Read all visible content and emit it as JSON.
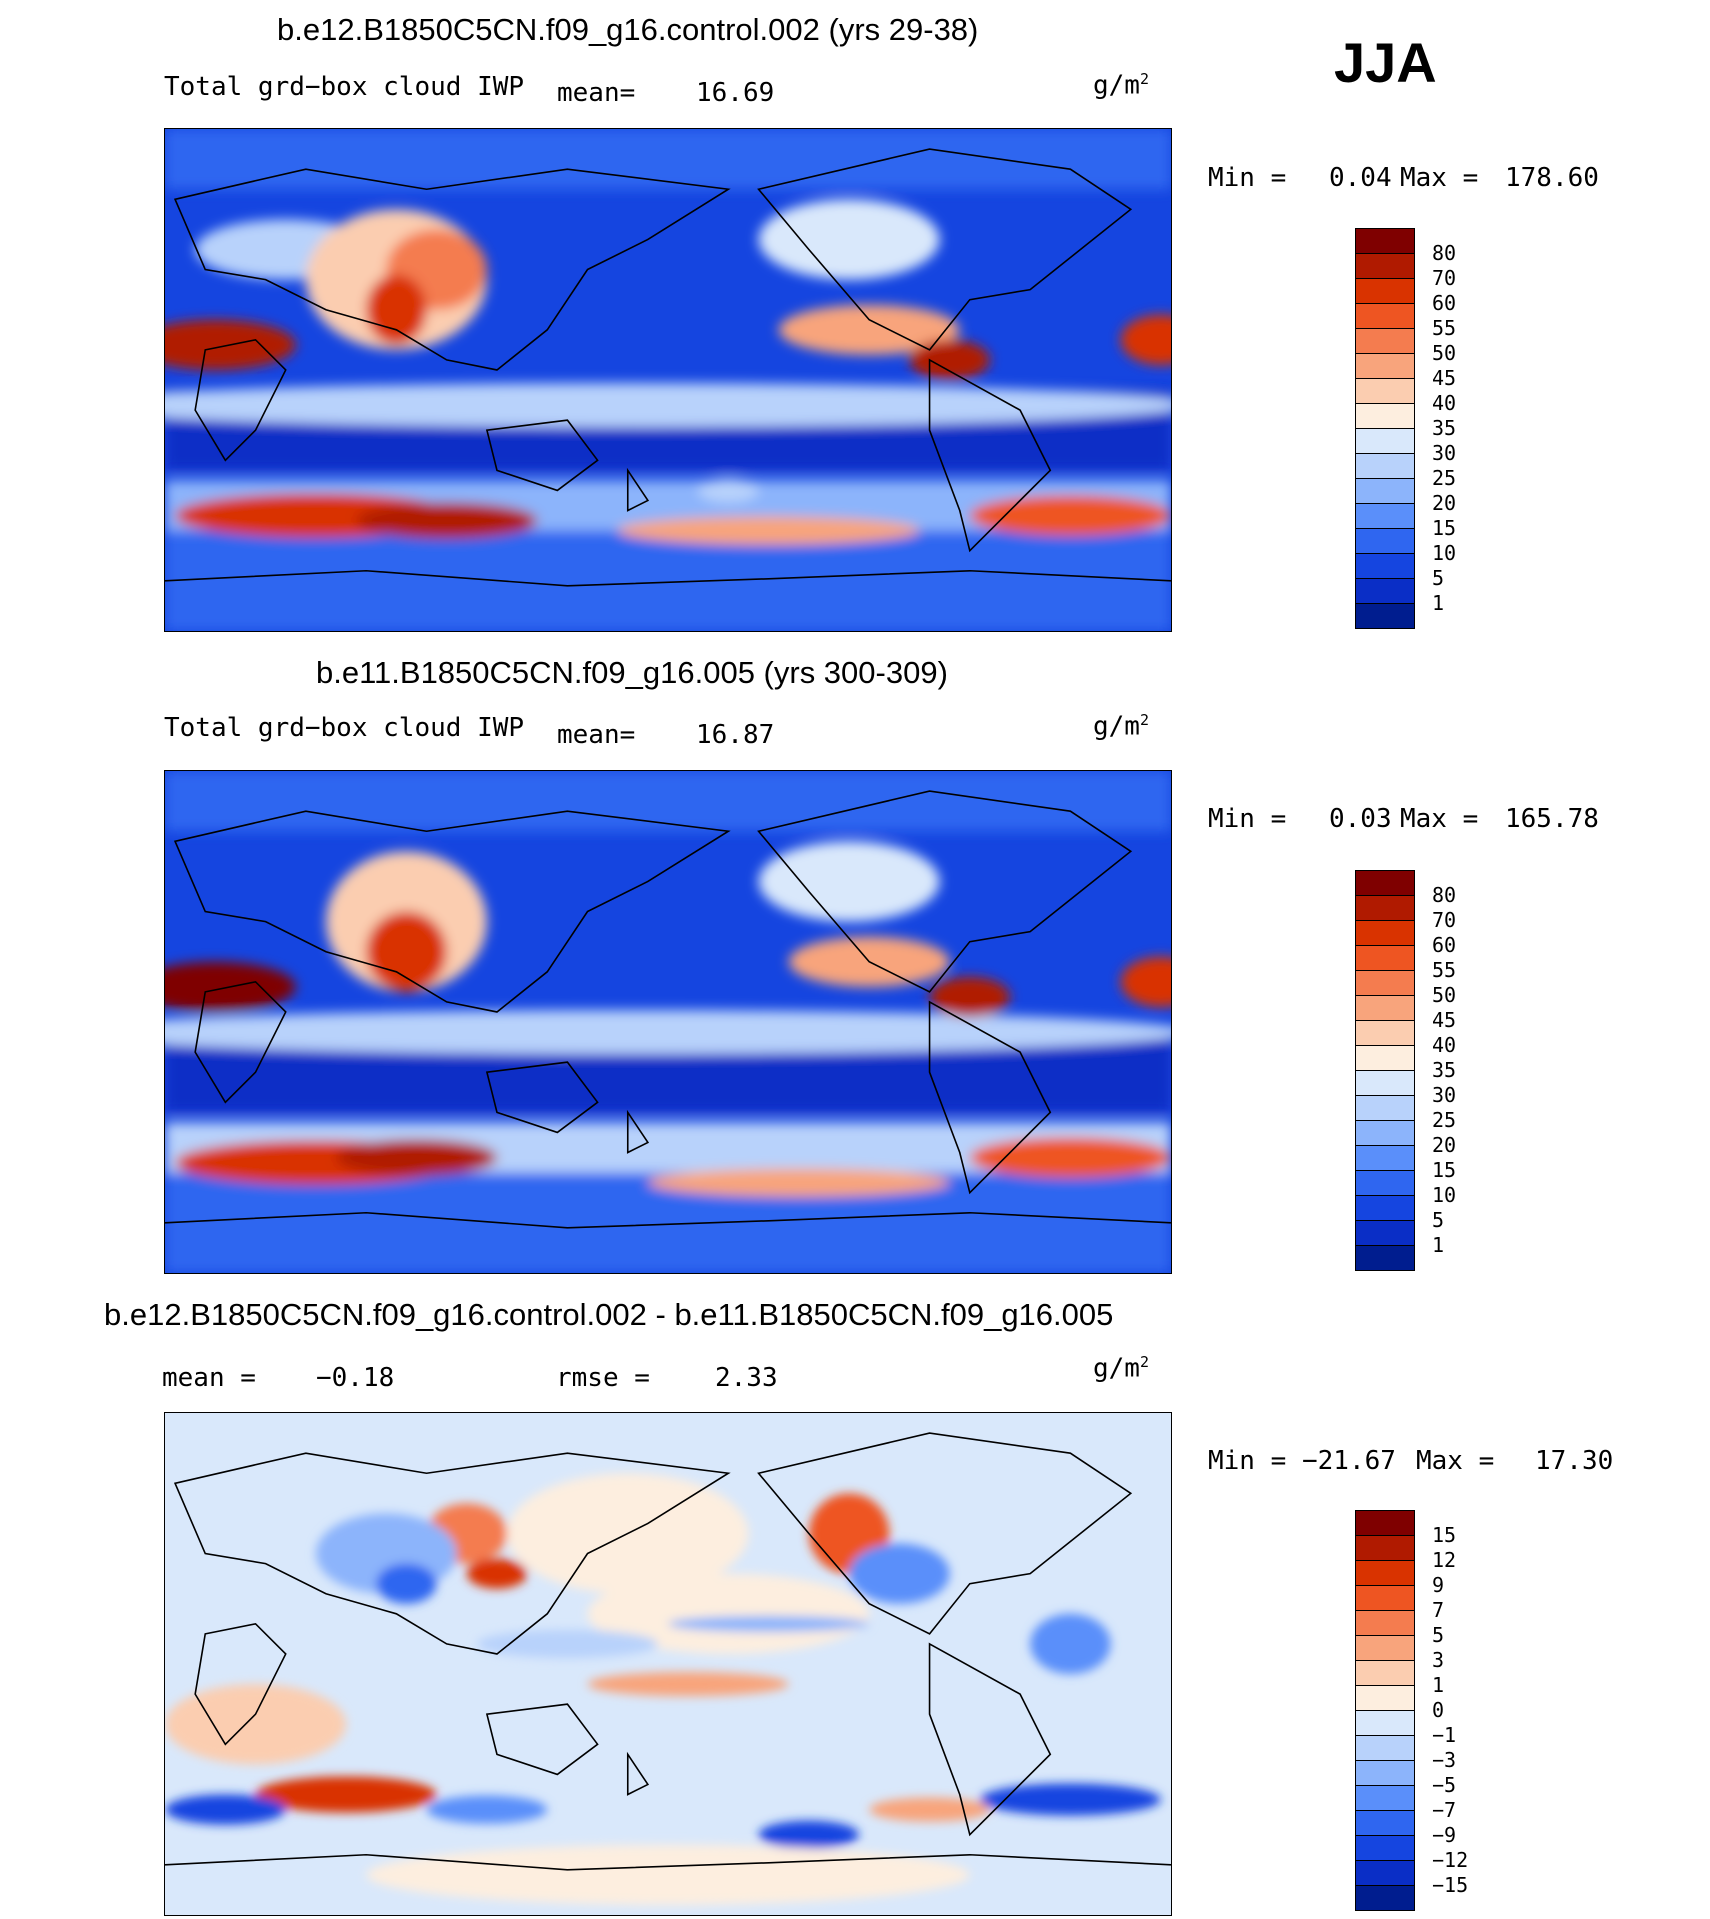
{
  "season": "JJA",
  "units_base": "g/m",
  "units_exp": "2",
  "panels": [
    {
      "id": "p1",
      "title": "b.e12.B1850C5CN.f09_g16.control.002 (yrs 29-38)",
      "variable": "Total grd−box cloud IWP",
      "mean_label": "mean=",
      "mean_value": "16.69",
      "min_label": "Min =",
      "min_value": "0.04",
      "max_label": "Max =",
      "max_value": "178.60",
      "colorbar": {
        "labels": [
          "80",
          "70",
          "60",
          "55",
          "50",
          "45",
          "40",
          "35",
          "30",
          "25",
          "20",
          "15",
          "10",
          "5",
          "1"
        ],
        "colors": [
          "#7f0000",
          "#b01a00",
          "#d93300",
          "#ee5522",
          "#f47c4f",
          "#f8a47c",
          "#fbcdb0",
          "#fdeedf",
          "#d9e8fb",
          "#b8d2fb",
          "#8cb4fb",
          "#5a8ffa",
          "#2f66f0",
          "#1545e0",
          "#0a2ec6",
          "#001d8f"
        ]
      }
    },
    {
      "id": "p2",
      "title": "b.e11.B1850C5CN.f09_g16.005 (yrs 300-309)",
      "variable": "Total grd−box cloud IWP",
      "mean_label": "mean=",
      "mean_value": "16.87",
      "min_label": "Min =",
      "min_value": "0.03",
      "max_label": "Max =",
      "max_value": "165.78",
      "colorbar": {
        "labels": [
          "80",
          "70",
          "60",
          "55",
          "50",
          "45",
          "40",
          "35",
          "30",
          "25",
          "20",
          "15",
          "10",
          "5",
          "1"
        ],
        "colors": [
          "#7f0000",
          "#b01a00",
          "#d93300",
          "#ee5522",
          "#f47c4f",
          "#f8a47c",
          "#fbcdb0",
          "#fdeedf",
          "#d9e8fb",
          "#b8d2fb",
          "#8cb4fb",
          "#5a8ffa",
          "#2f66f0",
          "#1545e0",
          "#0a2ec6",
          "#001d8f"
        ]
      }
    },
    {
      "id": "p3",
      "title": "b.e12.B1850C5CN.f09_g16.control.002 - b.e11.B1850C5CN.f09_g16.005",
      "mean_label": "mean =",
      "mean_value": "−0.18",
      "rmse_label": "rmse =",
      "rmse_value": "2.33",
      "min_label": "Min =",
      "min_value": "−21.67",
      "max_label": "Max =",
      "max_value": "17.30",
      "colorbar": {
        "labels": [
          "15",
          "12",
          "9",
          "7",
          "5",
          "3",
          "1",
          "0",
          "−1",
          "−3",
          "−5",
          "−7",
          "−9",
          "−12",
          "−15"
        ],
        "colors": [
          "#7f0000",
          "#b01a00",
          "#d93300",
          "#ee5522",
          "#f47c4f",
          "#f8a47c",
          "#fbcdb0",
          "#fdeedf",
          "#d9e8fb",
          "#b8d2fb",
          "#8cb4fb",
          "#5a8ffa",
          "#2f66f0",
          "#1545e0",
          "#0a2ec6",
          "#001d8f"
        ]
      }
    }
  ]
}
